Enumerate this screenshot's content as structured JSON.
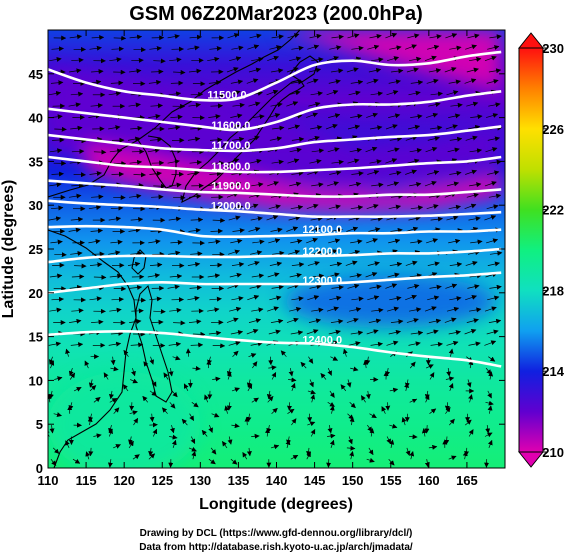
{
  "figure": {
    "title": "GSM 06Z20Mar2023 (200.0hPa)",
    "xlabel": "Longitude (degrees)",
    "ylabel": "Latitude  (degrees)",
    "credit_line1": "Drawing by DCL (https://www.gfd-dennou.org/library/dcl/)",
    "credit_line2": "Data from http://database.rish.kyoto-u.ac.jp/arch/jmadata/"
  },
  "chart_data": {
    "type": "heatmap",
    "title": "GSM 06Z20Mar2023 (200.0hPa)",
    "xlabel": "Longitude (degrees)",
    "ylabel": "Latitude  (degrees)",
    "xlim": [
      110,
      170
    ],
    "ylim": [
      0,
      50
    ],
    "x_ticks": [
      "110",
      "115",
      "120",
      "125",
      "130",
      "135",
      "140",
      "145",
      "150",
      "155",
      "160",
      "165"
    ],
    "y_ticks": [
      "0",
      "5",
      "10",
      "15",
      "20",
      "25",
      "30",
      "35",
      "40",
      "45"
    ],
    "colorbar": {
      "range": [
        210,
        230
      ],
      "tick_labels": [
        "210",
        "214",
        "218",
        "222",
        "226",
        "230"
      ],
      "colors": [
        "#e000b0",
        "#6000d0",
        "#1020e0",
        "#10a0f0",
        "#10e0c0",
        "#10f080",
        "#40e020",
        "#c0e000",
        "#ffe000",
        "#ff8000",
        "#ff1010"
      ],
      "extend_arrows": "both"
    },
    "contour_labels": [
      {
        "text": "11500.0",
        "lon": 133.5,
        "lat": 42.2
      },
      {
        "text": "11600.0",
        "lon": 134.0,
        "lat": 38.7
      },
      {
        "text": "11700.0",
        "lon": 134.0,
        "lat": 36.4
      },
      {
        "text": "11800.0",
        "lon": 134.0,
        "lat": 34.0
      },
      {
        "text": "11900.0",
        "lon": 134.0,
        "lat": 31.8
      },
      {
        "text": "12000.0",
        "lon": 134.0,
        "lat": 29.5
      },
      {
        "text": "12100.0",
        "lon": 146.0,
        "lat": 26.8
      },
      {
        "text": "12200.0",
        "lon": 146.0,
        "lat": 24.3
      },
      {
        "text": "12300.0",
        "lon": 146.0,
        "lat": 21.0
      },
      {
        "text": "12400.0",
        "lon": 146.0,
        "lat": 14.2
      }
    ],
    "contours": [
      {
        "label": "11500.0",
        "points": [
          [
            110,
            45.5
          ],
          [
            115,
            44
          ],
          [
            120,
            43
          ],
          [
            125,
            42.5
          ],
          [
            130,
            42
          ],
          [
            135,
            42.2
          ],
          [
            140,
            44
          ],
          [
            145,
            46
          ],
          [
            150,
            46.5
          ],
          [
            155,
            46
          ],
          [
            160,
            46.2
          ],
          [
            165,
            47
          ],
          [
            169.5,
            47.5
          ]
        ]
      },
      {
        "label": "11600.0",
        "points": [
          [
            110,
            41
          ],
          [
            115,
            40.5
          ],
          [
            120,
            40
          ],
          [
            125,
            39.5
          ],
          [
            130,
            39
          ],
          [
            135,
            38.6
          ],
          [
            140,
            39.5
          ],
          [
            145,
            41
          ],
          [
            150,
            41.5
          ],
          [
            155,
            41.5
          ],
          [
            160,
            41.8
          ],
          [
            165,
            42.5
          ],
          [
            169.5,
            43
          ]
        ]
      },
      {
        "label": "11700.0",
        "points": [
          [
            110,
            38
          ],
          [
            115,
            37.5
          ],
          [
            120,
            37
          ],
          [
            125,
            36.5
          ],
          [
            130,
            36.3
          ],
          [
            135,
            36.2
          ],
          [
            140,
            36.5
          ],
          [
            145,
            37.2
          ],
          [
            150,
            37.5
          ],
          [
            155,
            37.8
          ],
          [
            160,
            38
          ],
          [
            165,
            38.5
          ],
          [
            169.5,
            39
          ]
        ]
      },
      {
        "label": "11800.0",
        "points": [
          [
            110,
            35.5
          ],
          [
            115,
            35
          ],
          [
            120,
            34.5
          ],
          [
            125,
            34.3
          ],
          [
            130,
            34
          ],
          [
            135,
            33.8
          ],
          [
            140,
            33.8
          ],
          [
            145,
            34
          ],
          [
            150,
            34.2
          ],
          [
            155,
            34.5
          ],
          [
            160,
            34.8
          ],
          [
            165,
            35
          ],
          [
            169.5,
            35.5
          ]
        ]
      },
      {
        "label": "11900.0",
        "points": [
          [
            110,
            32.8
          ],
          [
            115,
            32.5
          ],
          [
            120,
            32.2
          ],
          [
            125,
            31.8
          ],
          [
            130,
            31.5
          ],
          [
            135,
            31.4
          ],
          [
            140,
            31.2
          ],
          [
            145,
            31
          ],
          [
            150,
            31
          ],
          [
            155,
            31.2
          ],
          [
            160,
            31.2
          ],
          [
            165,
            31.5
          ],
          [
            169.5,
            31.8
          ]
        ]
      },
      {
        "label": "12000.0",
        "points": [
          [
            110,
            30.5
          ],
          [
            115,
            30.2
          ],
          [
            120,
            30
          ],
          [
            125,
            29.8
          ],
          [
            130,
            29.5
          ],
          [
            135,
            29.3
          ],
          [
            140,
            29
          ],
          [
            145,
            28.7
          ],
          [
            150,
            28.7
          ],
          [
            155,
            28.7
          ],
          [
            160,
            28.8
          ],
          [
            165,
            29
          ],
          [
            169.5,
            29.2
          ]
        ]
      },
      {
        "label": "12100.0",
        "points": [
          [
            110,
            27.5
          ],
          [
            115,
            27.6
          ],
          [
            120,
            27.5
          ],
          [
            125,
            27.2
          ],
          [
            130,
            26.5
          ],
          [
            135,
            26.4
          ],
          [
            140,
            26.5
          ],
          [
            145,
            26.6
          ],
          [
            150,
            26.8
          ],
          [
            155,
            26.8
          ],
          [
            160,
            27
          ],
          [
            165,
            27
          ],
          [
            169.5,
            27.2
          ]
        ]
      },
      {
        "label": "12200.0",
        "points": [
          [
            110,
            23.5
          ],
          [
            115,
            24
          ],
          [
            120,
            24.2
          ],
          [
            125,
            24.2
          ],
          [
            130,
            24.1
          ],
          [
            135,
            24.1
          ],
          [
            140,
            24.2
          ],
          [
            145,
            24.2
          ],
          [
            150,
            24.3
          ],
          [
            155,
            24.5
          ],
          [
            160,
            24.5
          ],
          [
            165,
            24.7
          ],
          [
            169.5,
            25
          ]
        ]
      },
      {
        "label": "12300.0",
        "points": [
          [
            110,
            20
          ],
          [
            115,
            20.5
          ],
          [
            120,
            21
          ],
          [
            125,
            21.2
          ],
          [
            130,
            21
          ],
          [
            135,
            21
          ],
          [
            140,
            21
          ],
          [
            145,
            21
          ],
          [
            150,
            21.2
          ],
          [
            155,
            21.5
          ],
          [
            160,
            21.8
          ],
          [
            165,
            22
          ],
          [
            169.5,
            22.3
          ]
        ]
      },
      {
        "label": "12400.0",
        "points": [
          [
            110,
            15.2
          ],
          [
            115,
            15.5
          ],
          [
            120,
            15.6
          ],
          [
            125,
            15.4
          ],
          [
            130,
            15
          ],
          [
            135,
            14.6
          ],
          [
            140,
            14.3
          ],
          [
            145,
            14.2
          ],
          [
            150,
            13.8
          ],
          [
            155,
            13.2
          ],
          [
            160,
            12.7
          ],
          [
            165,
            12.3
          ],
          [
            169.5,
            11.6
          ]
        ]
      }
    ],
    "temperature_features": [
      {
        "name": "band-main-north",
        "kind": "poly",
        "value": 212,
        "points": [
          [
            110,
            46
          ],
          [
            120,
            44.5
          ],
          [
            130,
            42
          ],
          [
            140,
            40
          ],
          [
            150,
            37
          ],
          [
            160,
            37.5
          ],
          [
            169.5,
            39
          ],
          [
            169.5,
            35
          ],
          [
            160,
            33
          ],
          [
            150,
            32
          ],
          [
            140,
            33
          ],
          [
            130,
            34
          ],
          [
            120,
            35.5
          ],
          [
            110,
            36
          ]
        ]
      },
      {
        "name": "band-deep-jet",
        "kind": "poly",
        "value": 210,
        "points": [
          [
            115,
            37
          ],
          [
            122,
            36
          ],
          [
            130,
            34.5
          ],
          [
            138,
            33
          ],
          [
            146,
            31.8
          ],
          [
            155,
            31.5
          ],
          [
            165,
            33
          ],
          [
            169.5,
            34
          ],
          [
            169.5,
            31
          ],
          [
            160,
            29.5
          ],
          [
            150,
            29.2
          ],
          [
            140,
            29.5
          ],
          [
            132,
            30.5
          ],
          [
            126,
            31.5
          ],
          [
            120,
            32.5
          ],
          [
            115,
            34
          ]
        ]
      },
      {
        "name": "band-north-high",
        "kind": "poly",
        "value": 210,
        "points": [
          [
            128,
            50
          ],
          [
            140,
            50
          ],
          [
            148,
            48
          ],
          [
            156,
            46
          ],
          [
            165,
            44
          ],
          [
            169.5,
            43
          ],
          [
            169.5,
            50
          ]
        ]
      },
      {
        "name": "patch-south-warm",
        "kind": "ellipse",
        "value": 219,
        "lon": 120,
        "lat": 5,
        "rx": 10,
        "ry": 6
      },
      {
        "name": "patch-mid-cool",
        "kind": "ellipse",
        "value": 215,
        "lon": 155,
        "lat": 19,
        "rx": 14,
        "ry": 3
      }
    ]
  }
}
